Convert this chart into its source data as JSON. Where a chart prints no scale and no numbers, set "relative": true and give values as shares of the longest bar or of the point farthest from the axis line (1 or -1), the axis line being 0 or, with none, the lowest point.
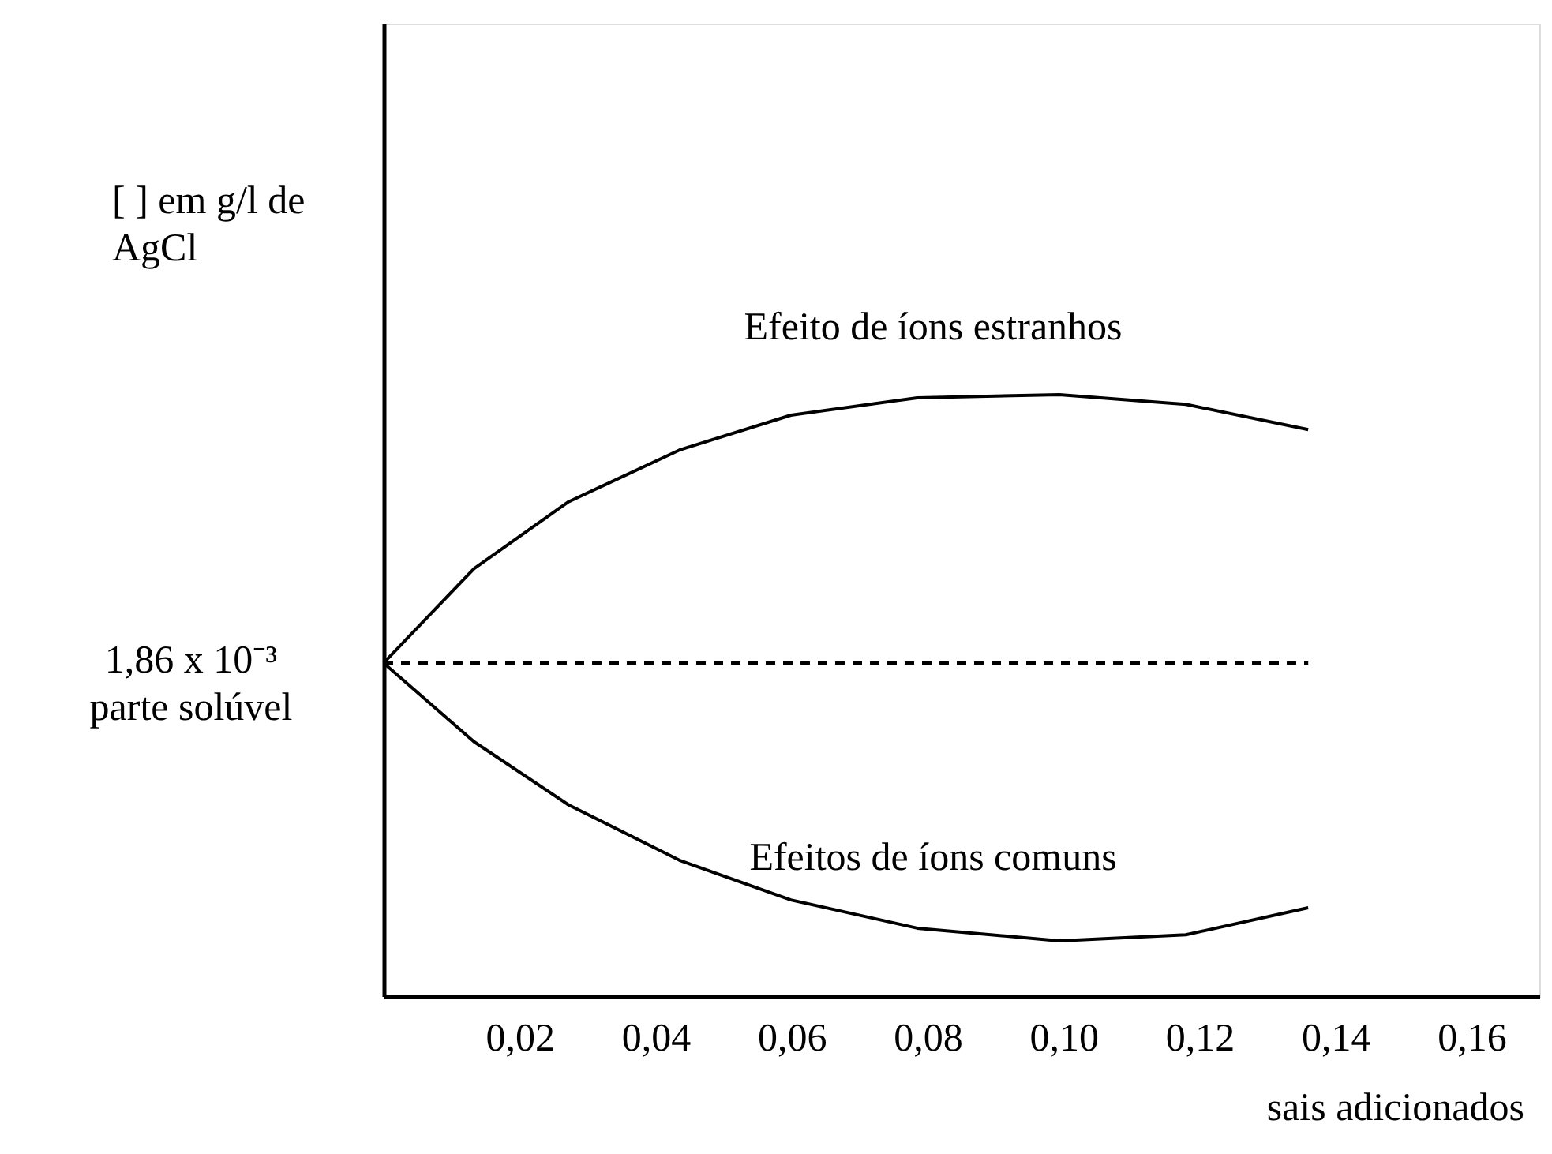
{
  "chart_data": {
    "type": "line",
    "relative": true,
    "ylabel": "[ ] em g/l de\nAgCl",
    "xlabel": "sais adicionados",
    "xlim": [
      0,
      0.17
    ],
    "xticks": [
      {
        "value": 0.02,
        "label": "0,02"
      },
      {
        "value": 0.04,
        "label": "0,04"
      },
      {
        "value": 0.06,
        "label": "0,06"
      },
      {
        "value": 0.08,
        "label": "0,08"
      },
      {
        "value": 0.1,
        "label": "0,10"
      },
      {
        "value": 0.12,
        "label": "0,12"
      },
      {
        "value": 0.14,
        "label": "0,14"
      },
      {
        "value": 0.16,
        "label": "0,16"
      }
    ],
    "grid": false,
    "marker": "none",
    "series": [
      {
        "name": "Efeito de íons estranhos",
        "color": "#000000",
        "line_style": "solid",
        "x": [
          0,
          0.0133,
          0.0272,
          0.0435,
          0.0599,
          0.0785,
          0.0994,
          0.118,
          0.136
        ],
        "values": [
          0.554,
          0.711,
          0.822,
          0.908,
          0.966,
          0.995,
          1,
          0.984,
          0.942
        ]
      },
      {
        "name": "Efeitos de íons comuns",
        "color": "#000000",
        "line_style": "solid",
        "x": [
          0,
          0.0133,
          0.0272,
          0.0435,
          0.0599,
          0.0785,
          0.0994,
          0.118,
          0.136
        ],
        "values": [
          0.554,
          0.423,
          0.318,
          0.226,
          0.16,
          0.113,
          0.092,
          0.102,
          0.147
        ]
      },
      {
        "color": "#000000",
        "line_style": "dashed",
        "x": [
          0,
          0.136
        ],
        "values": [
          0.554,
          0.554
        ]
      }
    ],
    "annotations": [
      {
        "text": "1,86 x 10⁻³\nparte solúvel",
        "x": 0,
        "y": 0.554
      }
    ]
  }
}
